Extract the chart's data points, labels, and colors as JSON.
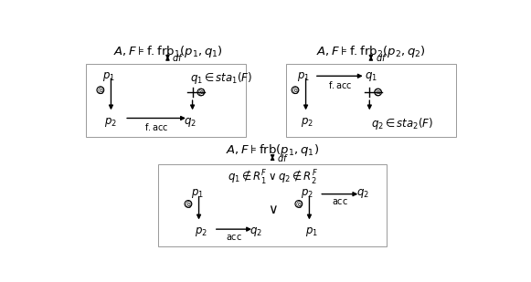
{
  "bg_color": "#ffffff",
  "box_face": "#ffffff",
  "box_edge": "#999999",
  "text_color": "#000000",
  "figsize": [
    5.81,
    3.09
  ],
  "dpi": 100,
  "fs_title": 9.5,
  "fs_body": 8.5,
  "fs_label": 7.5,
  "fs_df": 7.0
}
